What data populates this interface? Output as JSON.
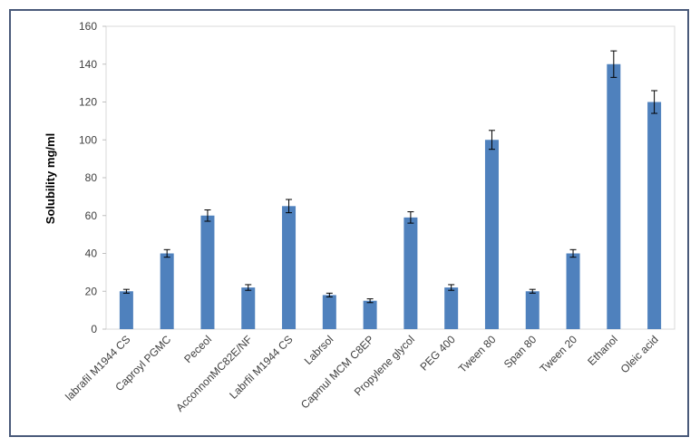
{
  "chart_data": {
    "type": "bar",
    "title": "",
    "xlabel": "",
    "ylabel": "Solubility mg/ml",
    "ylim": [
      0,
      160
    ],
    "yticks": [
      0,
      20,
      40,
      60,
      80,
      100,
      120,
      140,
      160
    ],
    "grid": false,
    "legend": "none",
    "bar_color": "#4f81bd",
    "categories": [
      "labrafil M1944 CS",
      "Caproyl PGMC",
      "Peceol",
      "AcconnonMC82E/NF",
      "Labrfil M1944 CS",
      "Labrsol",
      "Capmul MCM C8EP",
      "Propylene glycol",
      "PEG 400",
      "Tween 80",
      "Span 80",
      "Tween 20",
      "Ethanol",
      "Oleic acid"
    ],
    "values": [
      20,
      40,
      60,
      22,
      65,
      18,
      15,
      59,
      22,
      100,
      20,
      40,
      140,
      120
    ],
    "errors": [
      1,
      2,
      3,
      1.5,
      3.5,
      1,
      1,
      3,
      1.5,
      5,
      1,
      2,
      7,
      6
    ]
  }
}
